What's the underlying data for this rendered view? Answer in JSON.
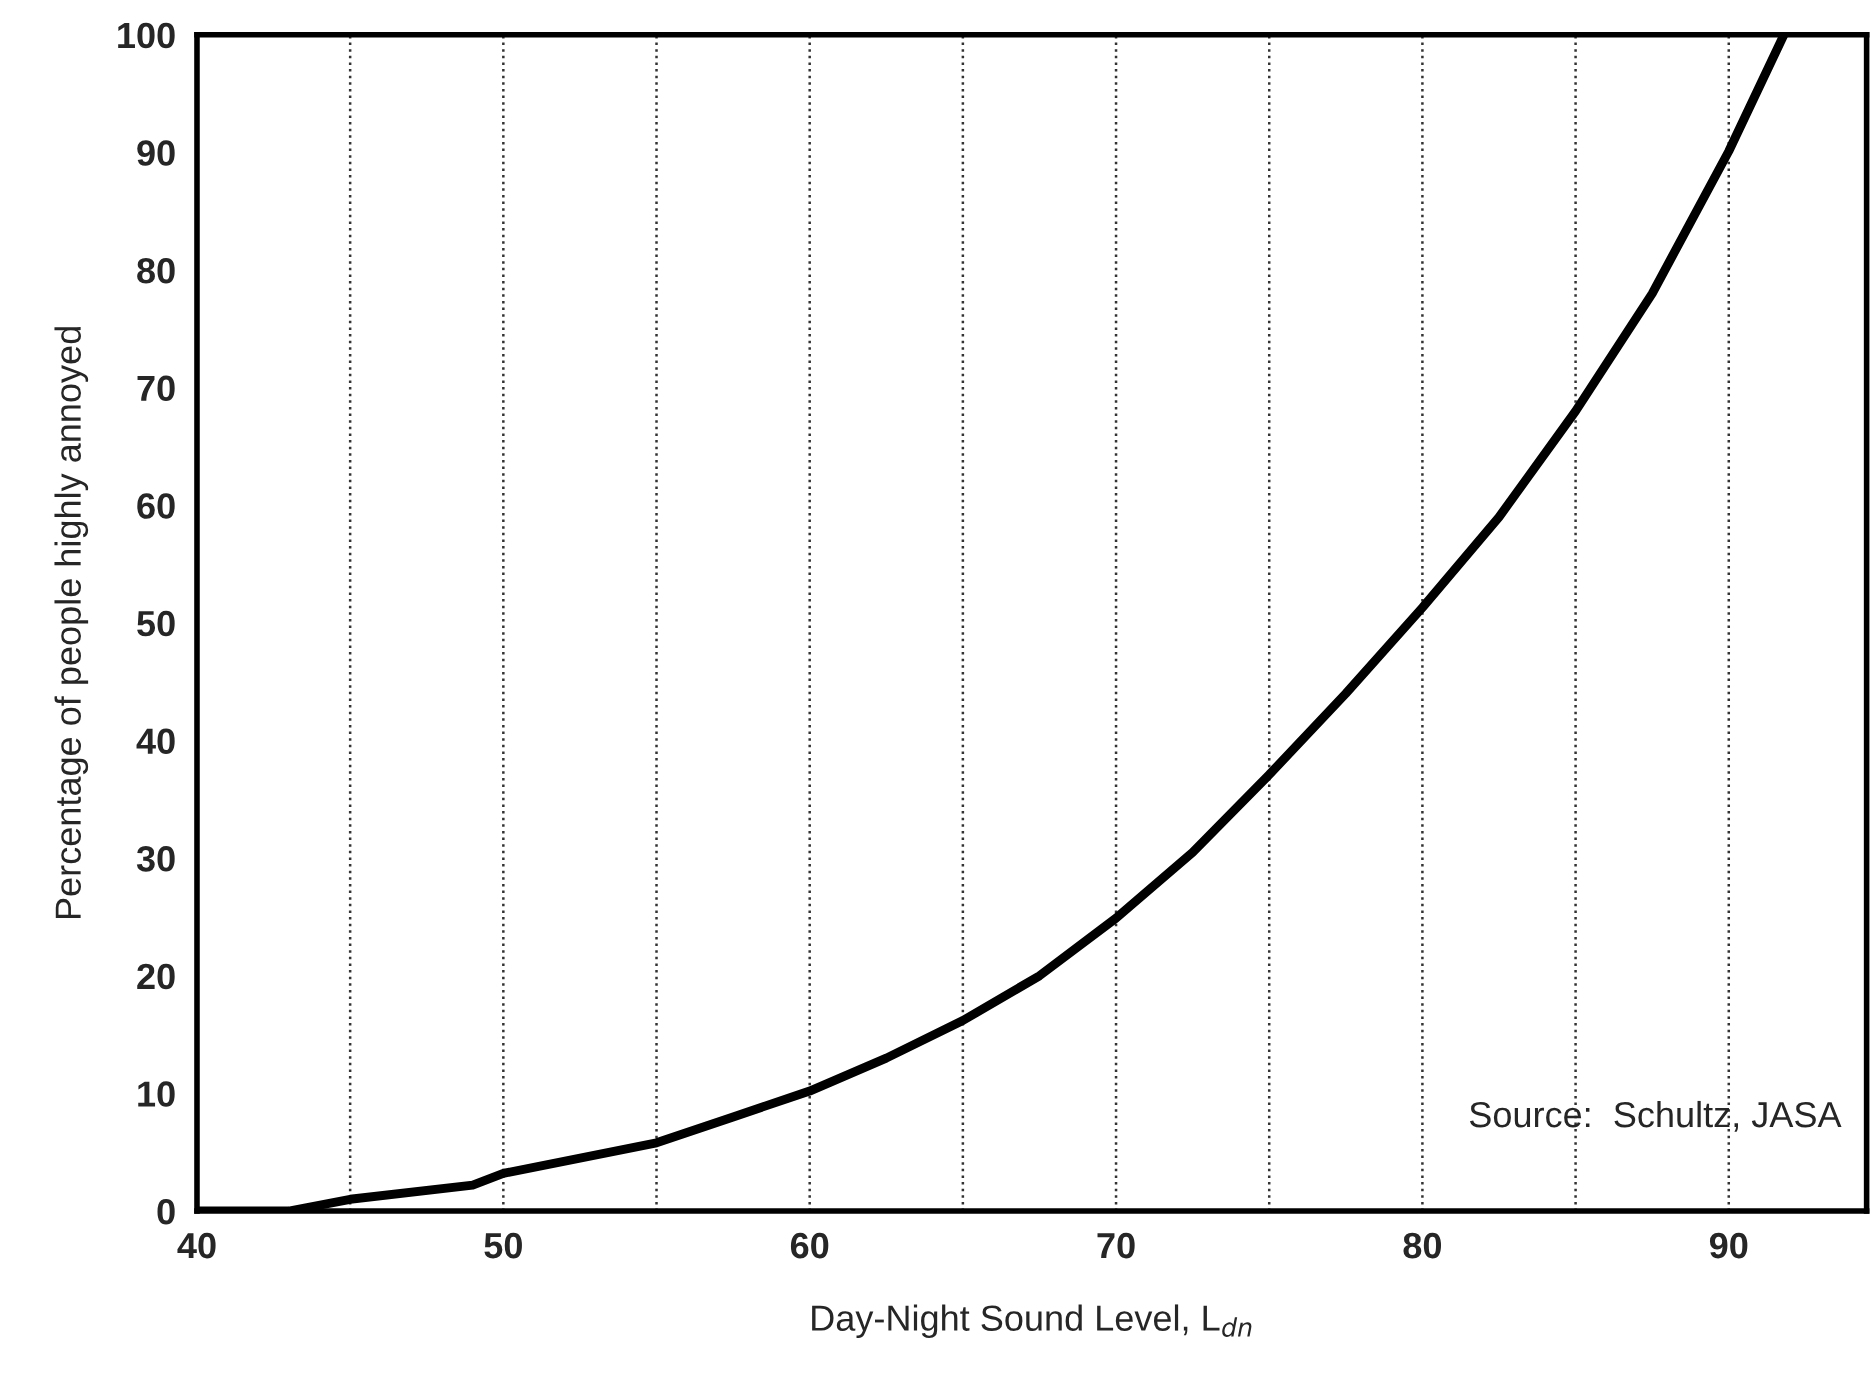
{
  "chart_data": {
    "type": "line",
    "xlabel": "Day-Night Sound Level, L$_{dn}$",
    "ylabel": "Percentage of people highly annoyed",
    "annotations": [
      "Source:  Schultz, JASA"
    ],
    "x": [
      40,
      43,
      45,
      49,
      50,
      55,
      57.5,
      60,
      62.5,
      65,
      67.5,
      70,
      72.5,
      75,
      77.5,
      80,
      82.5,
      85,
      87.5,
      90,
      91.8
    ],
    "series": [
      {
        "color": "#000000",
        "values": [
          0,
          0,
          1,
          2.2,
          3.2,
          5.8,
          8,
          10.2,
          13,
          16.2,
          20,
          24.9,
          30.5,
          37.1,
          44,
          51.3,
          59,
          68,
          78,
          90.1,
          100
        ]
      }
    ],
    "xlim": [
      40,
      94.5
    ],
    "xticks": [
      40,
      {
        "value": 45,
        "label": null
      },
      50,
      {
        "value": 55,
        "label": null
      },
      60,
      {
        "value": 65,
        "label": null
      },
      70,
      {
        "value": 75,
        "label": null
      },
      80,
      {
        "value": 85,
        "label": null
      },
      90
    ],
    "ylim": [
      0,
      100
    ],
    "yticks": [
      0,
      10,
      20,
      30,
      40,
      50,
      60,
      70,
      80,
      90,
      100
    ],
    "grid": "x",
    "marker": "none",
    "line_style": "solid"
  }
}
